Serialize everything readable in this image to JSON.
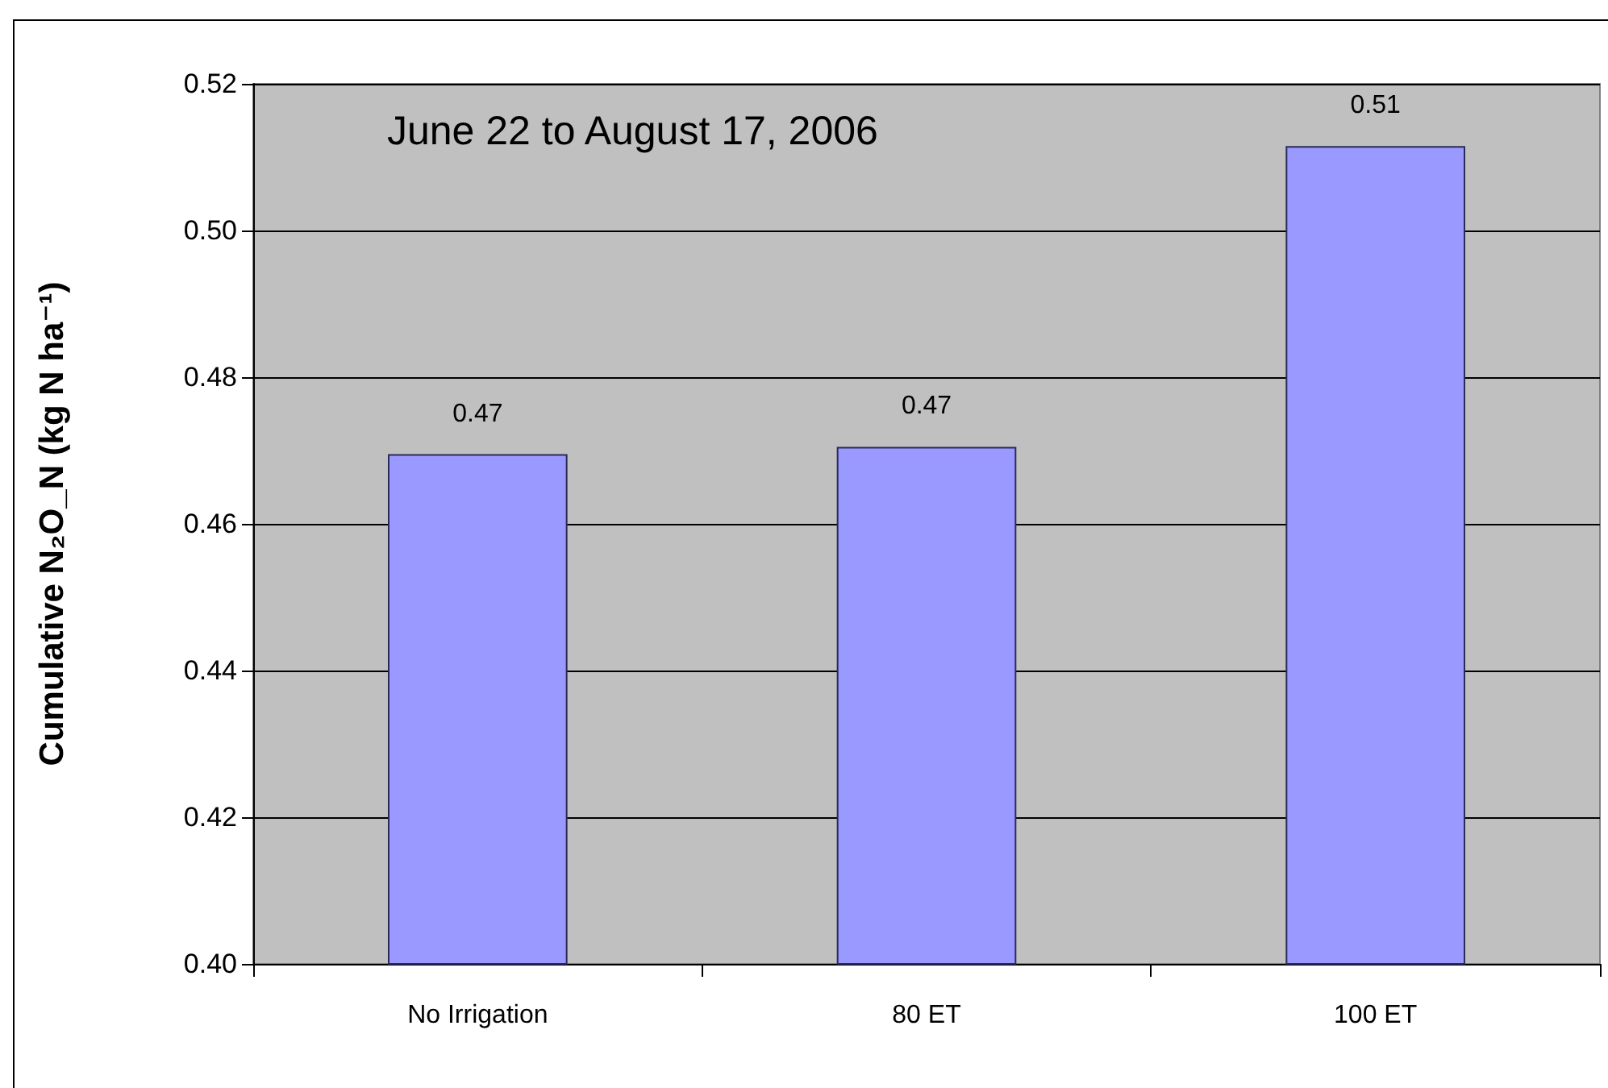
{
  "chart_data": {
    "type": "bar",
    "ylabel": "Cumulative N₂O_N (kg N ha⁻¹)",
    "annotations": [
      "June 22 to August 17, 2006"
    ],
    "categories": [
      "No Irrigation",
      "80 ET",
      "100 ET"
    ],
    "values": [
      0.4695,
      0.4705,
      0.5115
    ],
    "value_labels": [
      "0.47",
      "0.47",
      "0.51"
    ],
    "color": "#9999ff",
    "ylim": [
      0.4,
      0.52
    ],
    "yticks": [
      {
        "value": 0.4,
        "label": "0.40"
      },
      0.42,
      0.44,
      0.46,
      0.48,
      {
        "value": 0.5,
        "label": "0.50"
      },
      0.52
    ],
    "grid": "y"
  }
}
